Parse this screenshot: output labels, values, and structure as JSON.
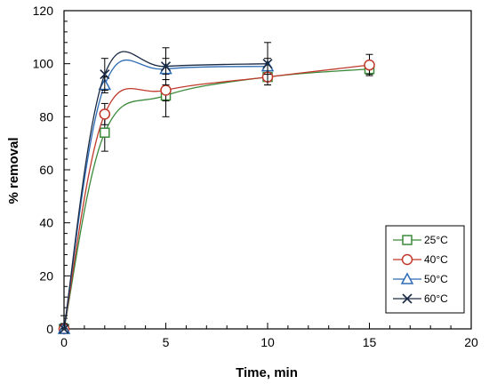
{
  "chart_data": {
    "type": "line",
    "xlabel": "Time, min",
    "ylabel": "% removal",
    "xlim": [
      0,
      20
    ],
    "ylim": [
      0,
      120
    ],
    "xticks": [
      0,
      5,
      10,
      15,
      20
    ],
    "yticks": [
      0,
      20,
      40,
      60,
      80,
      100,
      120
    ],
    "grid": false,
    "legend_position": "bottom-right",
    "series": [
      {
        "name": "25°C",
        "marker": "square",
        "color": "#3a8a3a",
        "x": [
          0,
          2,
          5,
          10,
          15
        ],
        "y": [
          0,
          74,
          88,
          95,
          98
        ],
        "err": [
          2,
          7,
          8,
          3,
          2
        ]
      },
      {
        "name": "40°C",
        "marker": "circle",
        "color": "#c0392b",
        "x": [
          0,
          2,
          5,
          10,
          15
        ],
        "y": [
          0,
          81,
          90,
          95,
          99.5
        ],
        "err": [
          2,
          4,
          4,
          3,
          4
        ]
      },
      {
        "name": "50°C",
        "marker": "triangle",
        "color": "#2e6bb5",
        "x": [
          0,
          2,
          5,
          10
        ],
        "y": [
          0,
          92,
          98,
          99
        ],
        "err": [
          2,
          3,
          4,
          3
        ]
      },
      {
        "name": "60°C",
        "marker": "x",
        "color": "#1a2a44",
        "x": [
          0,
          2,
          5,
          10
        ],
        "y": [
          0,
          96,
          99,
          100
        ],
        "err": [
          5,
          6,
          7,
          8
        ]
      }
    ]
  }
}
